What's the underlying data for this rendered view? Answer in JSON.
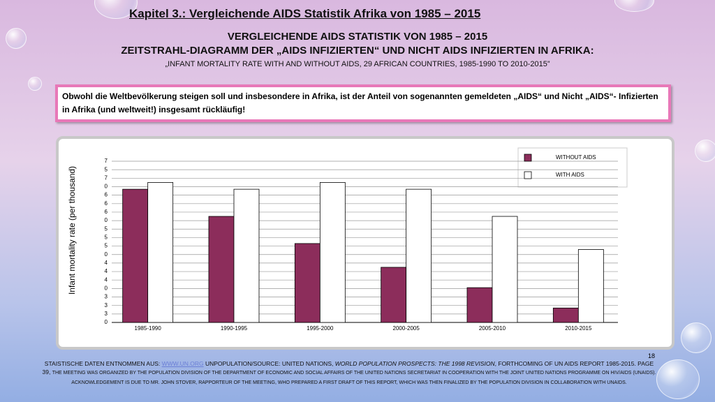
{
  "header": {
    "title": "Kapitel 3.: Vergleichende AIDS Statistik Afrika von 1985 – 2015",
    "heading": "VERGLEICHENDE AIDS STATISTIK VON 1985 – 2015",
    "subheading": "ZEITSTRAHL-DIAGRAMM DER „AIDS INFIZIERTEN“ UND NICHT AIDS INFIZIERTEN IN AFRIKA:",
    "subtitle": "„INFANT MORTALITY RATE WITH AND WITHOUT AIDS, 29 AFRICAN COUNTRIES, 1985-1990 TO 2010-2015”"
  },
  "note": "Obwohl die Weltbevölkerung steigen soll und insbesondere in Afrika, ist der Anteil von sogenannten gemeldeten „AIDS“ und Nicht „AIDS“- Infizierten in Afrika (und weltweit!) insgesamt rückläufig!",
  "chart_data": {
    "type": "bar",
    "ylabel": "Infant mortality rate (per thousand)",
    "categories": [
      "1985-1990",
      "1990-1995",
      "1995-2000",
      "2000-2005",
      "2005-2010",
      "2010-2015"
    ],
    "series": [
      {
        "name": "WITHOUT AIDS",
        "color": "#8c2d5b",
        "values": [
          15.7,
          12.5,
          9.3,
          6.5,
          4.1,
          1.7
        ]
      },
      {
        "name": "WITH AIDS",
        "color": "#ffffff",
        "values": [
          16.5,
          15.7,
          16.5,
          15.7,
          12.5,
          8.6
        ]
      }
    ],
    "ylim": [
      0,
      19
    ],
    "yticks": [
      0,
      {
        "value": 1,
        "label": "3"
      },
      {
        "value": 2,
        "label": "3"
      },
      {
        "value": 3,
        "label": "3"
      },
      {
        "value": 4,
        "label": "0"
      },
      {
        "value": 5,
        "label": "4"
      },
      {
        "value": 6,
        "label": "4"
      },
      {
        "value": 7,
        "label": "4"
      },
      {
        "value": 8,
        "label": "0"
      },
      {
        "value": 9,
        "label": "5"
      },
      {
        "value": 10,
        "label": "5"
      },
      {
        "value": 11,
        "label": "5"
      },
      {
        "value": 12,
        "label": "0"
      },
      {
        "value": 13,
        "label": "6"
      },
      {
        "value": 14,
        "label": "6"
      },
      {
        "value": 15,
        "label": "6"
      },
      {
        "value": 16,
        "label": "0"
      },
      {
        "value": 17,
        "label": "7"
      },
      {
        "value": 18,
        "label": "5"
      },
      {
        "value": 19,
        "label": "7"
      }
    ],
    "grid": true,
    "legend": "upper right"
  },
  "footer": {
    "parts": [
      "STAISTISCHE DATEN ENTNOMMEN AUS: ",
      "WWW.UN.ORG",
      " UNPOPULATION/SOURCE: UNITED NATIONS, ",
      "WORLD POPULATION PROSPECTS: THE 1998 REVISION",
      ", FORTHCOMING OF UN AIDS REPORT 1985-2015. PAGE 39, ",
      "THE MEETING WAS ORGANIZED BY THE POPULATION DIVISION OF THE DEPARTMENT OF ECONOMIC AND SOCIAL AFFAIRS OF THE UNITED NATIONS SECRETARIAT IN COOPERATION WITH THE JOINT UNITED NATIONS PROGRAMME ON HIV/AIDS (UNAIDS). ACKNOWLEDGEMENT IS DUE TO MR. JOHN STOVER, RAPPORTEUR OF THE MEETING, WHO PREPARED A FIRST DRAFT OF THIS REPORT, WHICH WAS THEN FINALIZED BY THE POPULATION DIVISION IN COLLABORATION WITH UNAIDS."
    ]
  },
  "page_number": "18"
}
